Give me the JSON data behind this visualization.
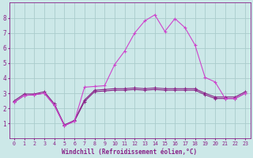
{
  "xlabel": "Windchill (Refroidissement éolien,°C)",
  "xlim": [
    -0.5,
    23.5
  ],
  "ylim": [
    0,
    9
  ],
  "xticks": [
    0,
    1,
    2,
    3,
    4,
    5,
    6,
    7,
    8,
    9,
    10,
    11,
    12,
    13,
    14,
    15,
    16,
    17,
    18,
    19,
    20,
    21,
    22,
    23
  ],
  "yticks": [
    1,
    2,
    3,
    4,
    5,
    6,
    7,
    8
  ],
  "bg_color": "#cce8e8",
  "grid_color": "#aacccc",
  "line_color_dark": "#882288",
  "line_color_bright": "#cc44cc",
  "lines": [
    {
      "color": "#882288",
      "x": [
        0,
        1,
        2,
        3,
        4,
        5,
        6,
        7,
        8,
        9,
        10,
        11,
        12,
        13,
        14,
        15,
        16,
        17,
        18,
        19,
        20,
        21,
        22,
        23
      ],
      "y": [
        2.4,
        2.85,
        2.9,
        3.0,
        2.2,
        0.85,
        1.15,
        2.45,
        3.1,
        3.15,
        3.2,
        3.2,
        3.25,
        3.2,
        3.25,
        3.2,
        3.2,
        3.2,
        3.2,
        2.9,
        2.65,
        2.65,
        2.65,
        3.0
      ]
    },
    {
      "color": "#882288",
      "x": [
        0,
        1,
        2,
        3,
        4,
        5,
        6,
        7,
        8,
        9,
        10,
        11,
        12,
        13,
        14,
        15,
        16,
        17,
        18,
        19,
        20,
        21,
        22,
        23
      ],
      "y": [
        2.5,
        2.95,
        2.95,
        3.1,
        2.3,
        0.9,
        1.2,
        2.55,
        3.2,
        3.25,
        3.3,
        3.3,
        3.35,
        3.3,
        3.35,
        3.3,
        3.3,
        3.3,
        3.3,
        3.0,
        2.75,
        2.75,
        2.75,
        3.1
      ]
    },
    {
      "color": "#cc44cc",
      "x": [
        0,
        1,
        2,
        3,
        4,
        5,
        6,
        7,
        8,
        9,
        10,
        11,
        12,
        13,
        14,
        15,
        16,
        17,
        18,
        19,
        20,
        21,
        22,
        23
      ],
      "y": [
        2.4,
        2.85,
        2.9,
        3.0,
        2.2,
        0.85,
        1.15,
        3.4,
        3.45,
        3.5,
        4.9,
        5.8,
        7.0,
        7.8,
        8.2,
        7.1,
        7.95,
        7.35,
        6.2,
        4.05,
        3.75,
        2.65,
        2.65,
        3.0
      ]
    }
  ]
}
